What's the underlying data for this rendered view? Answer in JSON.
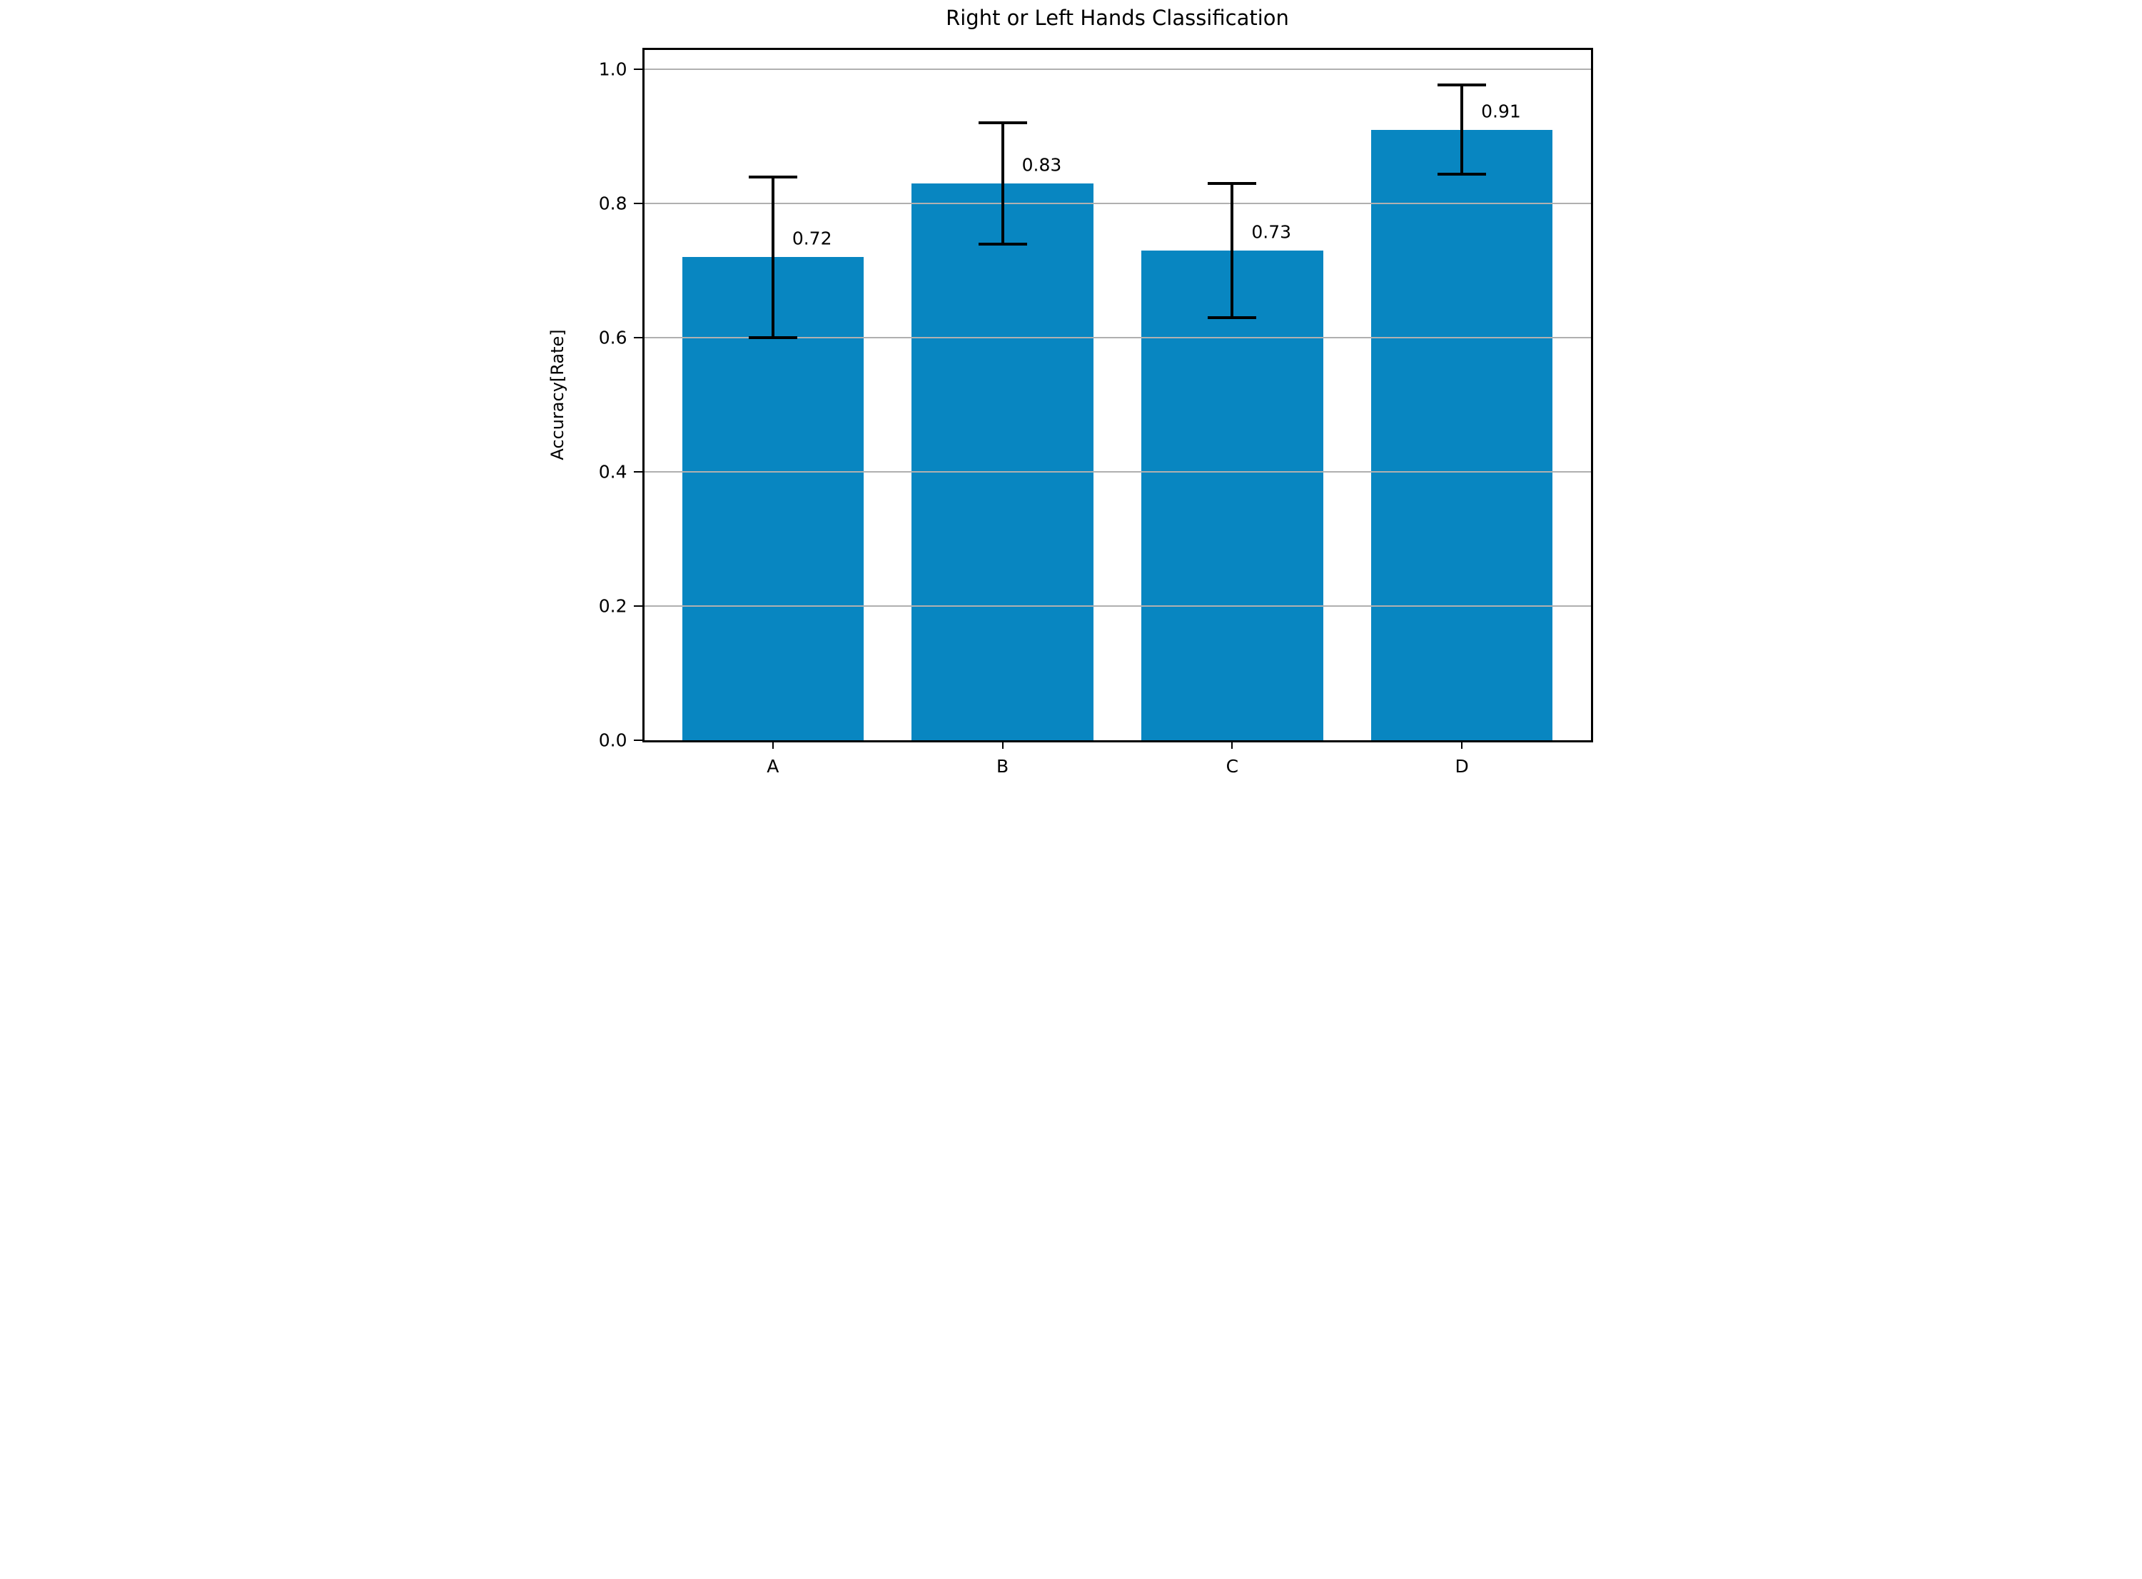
{
  "chart_data": {
    "type": "bar",
    "title": "Right or Left Hands Classification",
    "ylabel": "Accuracy[Rate]",
    "xlabel": "",
    "categories": [
      "A",
      "B",
      "C",
      "D"
    ],
    "values": [
      0.72,
      0.83,
      0.73,
      0.91
    ],
    "bar_labels": [
      "0.72",
      "0.83",
      "0.73",
      "0.91"
    ],
    "error_low": [
      0.6,
      0.74,
      0.63,
      0.844
    ],
    "error_high": [
      0.84,
      0.92,
      0.83,
      0.977
    ],
    "yticks": [
      {
        "label": "0.0",
        "value": 0.0
      },
      {
        "label": "0.2",
        "value": 0.2
      },
      {
        "label": "0.4",
        "value": 0.4
      },
      {
        "label": "0.6",
        "value": 0.6
      },
      {
        "label": "0.8",
        "value": 0.8
      },
      {
        "label": "1.0",
        "value": 1.0
      }
    ],
    "ylim": [
      0,
      1.029
    ],
    "grid": true,
    "grid_axis": "y",
    "grid_color": "#b0b0b0",
    "bar_color": "#0886c1",
    "errorbar_color": "#000000",
    "background_color": "#ffffff",
    "legend": null
  }
}
